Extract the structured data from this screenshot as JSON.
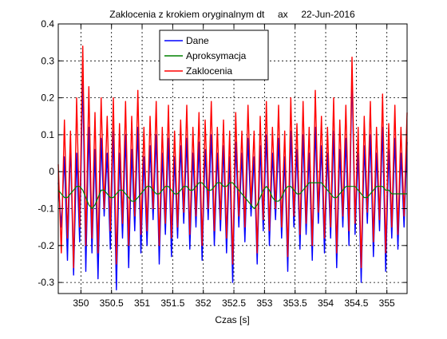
{
  "chart_data": {
    "type": "line",
    "title": "Zaklocenia z krokiem oryginalnym dt     ax     22-Jun-2016",
    "xlabel": "Czas [s]",
    "ylabel": "",
    "xlim": [
      349.63,
      355.33
    ],
    "ylim": [
      -0.33,
      0.4
    ],
    "xticks": [
      350,
      350.5,
      351,
      351.5,
      352,
      352.5,
      353,
      353.5,
      354,
      354.5,
      355
    ],
    "xtick_labels": [
      "350",
      "350.5",
      "351",
      "351.5",
      "352",
      "352.5",
      "353",
      "353.5",
      "354",
      "354.5",
      "355"
    ],
    "yticks": [
      -0.3,
      -0.2,
      -0.1,
      0,
      0.1,
      0.2,
      0.3,
      0.4
    ],
    "ytick_labels": [
      "-0.3",
      "-0.2",
      "-0.1",
      "0",
      "0.1",
      "0.2",
      "0.3",
      "0.4"
    ],
    "grid": true,
    "legend_position": "top-center",
    "series": [
      {
        "name": "Dane",
        "color": "#0000ff",
        "x": [
          349.63,
          349.68,
          349.73,
          349.78,
          349.83,
          349.88,
          349.93,
          349.98,
          350.03,
          350.08,
          350.13,
          350.18,
          350.23,
          350.28,
          350.33,
          350.38,
          350.43,
          350.48,
          350.53,
          350.58,
          350.63,
          350.68,
          350.73,
          350.78,
          350.83,
          350.88,
          350.93,
          350.98,
          351.03,
          351.08,
          351.13,
          351.18,
          351.23,
          351.28,
          351.33,
          351.38,
          351.43,
          351.48,
          351.53,
          351.58,
          351.63,
          351.68,
          351.73,
          351.78,
          351.83,
          351.88,
          351.93,
          351.98,
          352.03,
          352.08,
          352.13,
          352.18,
          352.23,
          352.28,
          352.33,
          352.38,
          352.43,
          352.48,
          352.53,
          352.58,
          352.63,
          352.68,
          352.73,
          352.78,
          352.83,
          352.88,
          352.93,
          352.98,
          353.03,
          353.08,
          353.13,
          353.18,
          353.23,
          353.28,
          353.33,
          353.38,
          353.43,
          353.48,
          353.53,
          353.58,
          353.63,
          353.68,
          353.73,
          353.78,
          353.83,
          353.88,
          353.93,
          353.98,
          354.03,
          354.08,
          354.13,
          354.18,
          354.23,
          354.28,
          354.33,
          354.38,
          354.43,
          354.48,
          354.53,
          354.58,
          354.63,
          354.68,
          354.73,
          354.78,
          354.83,
          354.88,
          354.93,
          354.98,
          355.03,
          355.08,
          355.13,
          355.18,
          355.23,
          355.28,
          355.33
        ],
        "y": [
          -0.03,
          -0.15,
          0.04,
          -0.24,
          0.08,
          -0.28,
          0.05,
          -0.19,
          0.26,
          -0.27,
          0.12,
          -0.22,
          0.06,
          -0.29,
          0.09,
          -0.12,
          0.05,
          -0.21,
          0.11,
          -0.32,
          0.05,
          -0.18,
          0.1,
          -0.26,
          0.06,
          -0.16,
          0.12,
          -0.22,
          0.04,
          -0.2,
          0.07,
          -0.13,
          0.1,
          -0.25,
          0.05,
          -0.17,
          0.09,
          -0.23,
          0.04,
          -0.18,
          0.07,
          -0.14,
          0.09,
          -0.21,
          0.05,
          -0.15,
          0.08,
          -0.24,
          0.06,
          -0.13,
          0.1,
          -0.2,
          0.05,
          -0.16,
          0.07,
          -0.22,
          0.04,
          -0.3,
          0.08,
          -0.15,
          0.05,
          -0.19,
          0.09,
          -0.12,
          0.04,
          -0.25,
          0.07,
          -0.16,
          0.1,
          -0.2,
          0.05,
          -0.13,
          0.09,
          -0.18,
          0.04,
          -0.27,
          0.11,
          -0.15,
          0.06,
          -0.21,
          0.1,
          -0.17,
          0.05,
          -0.24,
          0.12,
          -0.14,
          0.07,
          -0.22,
          0.05,
          -0.18,
          0.11,
          -0.26,
          0.06,
          -0.15,
          0.09,
          -0.2,
          0.27,
          -0.17,
          0.05,
          -0.3,
          0.07,
          -0.14,
          0.1,
          -0.23,
          0.05,
          -0.16,
          0.12,
          -0.27,
          0.06,
          -0.18,
          0.09,
          -0.21,
          0.05,
          -0.15,
          0.08
        ]
      },
      {
        "name": "Aproksymacja",
        "color": "#008000",
        "x": [
          349.63,
          349.68,
          349.73,
          349.78,
          349.83,
          349.88,
          349.93,
          349.98,
          350.03,
          350.08,
          350.13,
          350.18,
          350.23,
          350.28,
          350.33,
          350.38,
          350.43,
          350.48,
          350.53,
          350.58,
          350.63,
          350.68,
          350.73,
          350.78,
          350.83,
          350.88,
          350.93,
          350.98,
          351.03,
          351.08,
          351.13,
          351.18,
          351.23,
          351.28,
          351.33,
          351.38,
          351.43,
          351.48,
          351.53,
          351.58,
          351.63,
          351.68,
          351.73,
          351.78,
          351.83,
          351.88,
          351.93,
          351.98,
          352.03,
          352.08,
          352.13,
          352.18,
          352.23,
          352.28,
          352.33,
          352.38,
          352.43,
          352.48,
          352.53,
          352.58,
          352.63,
          352.68,
          352.73,
          352.78,
          352.83,
          352.88,
          352.93,
          352.98,
          353.03,
          353.08,
          353.13,
          353.18,
          353.23,
          353.28,
          353.33,
          353.38,
          353.43,
          353.48,
          353.53,
          353.58,
          353.63,
          353.68,
          353.73,
          353.78,
          353.83,
          353.88,
          353.93,
          353.98,
          354.03,
          354.08,
          354.13,
          354.18,
          354.23,
          354.28,
          354.33,
          354.38,
          354.43,
          354.48,
          354.53,
          354.58,
          354.63,
          354.68,
          354.73,
          354.78,
          354.83,
          354.88,
          354.93,
          354.98,
          355.03,
          355.08,
          355.13,
          355.18,
          355.23,
          355.28,
          355.33
        ],
        "y": [
          -0.05,
          -0.06,
          -0.07,
          -0.07,
          -0.06,
          -0.05,
          -0.04,
          -0.04,
          -0.05,
          -0.07,
          -0.09,
          -0.1,
          -0.09,
          -0.07,
          -0.05,
          -0.05,
          -0.06,
          -0.07,
          -0.07,
          -0.06,
          -0.05,
          -0.05,
          -0.06,
          -0.07,
          -0.08,
          -0.08,
          -0.07,
          -0.06,
          -0.05,
          -0.04,
          -0.04,
          -0.05,
          -0.06,
          -0.06,
          -0.05,
          -0.04,
          -0.04,
          -0.05,
          -0.06,
          -0.06,
          -0.05,
          -0.04,
          -0.04,
          -0.05,
          -0.05,
          -0.04,
          -0.03,
          -0.03,
          -0.04,
          -0.05,
          -0.05,
          -0.04,
          -0.03,
          -0.03,
          -0.04,
          -0.04,
          -0.03,
          -0.03,
          -0.04,
          -0.05,
          -0.06,
          -0.07,
          -0.08,
          -0.09,
          -0.1,
          -0.09,
          -0.07,
          -0.05,
          -0.04,
          -0.05,
          -0.07,
          -0.08,
          -0.08,
          -0.07,
          -0.05,
          -0.04,
          -0.04,
          -0.05,
          -0.06,
          -0.06,
          -0.05,
          -0.04,
          -0.03,
          -0.03,
          -0.03,
          -0.03,
          -0.03,
          -0.04,
          -0.05,
          -0.06,
          -0.07,
          -0.07,
          -0.06,
          -0.05,
          -0.04,
          -0.04,
          -0.04,
          -0.04,
          -0.05,
          -0.06,
          -0.07,
          -0.07,
          -0.06,
          -0.05,
          -0.04,
          -0.04,
          -0.04,
          -0.05,
          -0.05,
          -0.06,
          -0.06,
          -0.06,
          -0.06,
          -0.06,
          -0.06
        ]
      },
      {
        "name": "Zaklocenia",
        "color": "#ff0000",
        "x": [
          349.63,
          349.68,
          349.73,
          349.78,
          349.83,
          349.88,
          349.93,
          349.98,
          350.03,
          350.08,
          350.13,
          350.18,
          350.23,
          350.28,
          350.33,
          350.38,
          350.43,
          350.48,
          350.53,
          350.58,
          350.63,
          350.68,
          350.73,
          350.78,
          350.83,
          350.88,
          350.93,
          350.98,
          351.03,
          351.08,
          351.13,
          351.18,
          351.23,
          351.28,
          351.33,
          351.38,
          351.43,
          351.48,
          351.53,
          351.58,
          351.63,
          351.68,
          351.73,
          351.78,
          351.83,
          351.88,
          351.93,
          351.98,
          352.03,
          352.08,
          352.13,
          352.18,
          352.23,
          352.28,
          352.33,
          352.38,
          352.43,
          352.48,
          352.53,
          352.58,
          352.63,
          352.68,
          352.73,
          352.78,
          352.83,
          352.88,
          352.93,
          352.98,
          353.03,
          353.08,
          353.13,
          353.18,
          353.23,
          353.28,
          353.33,
          353.38,
          353.43,
          353.48,
          353.53,
          353.58,
          353.63,
          353.68,
          353.73,
          353.78,
          353.83,
          353.88,
          353.93,
          353.98,
          354.03,
          354.08,
          354.13,
          354.18,
          354.23,
          354.28,
          354.33,
          354.38,
          354.43,
          354.48,
          354.53,
          354.58,
          354.63,
          354.68,
          354.73,
          354.78,
          354.83,
          354.88,
          354.93,
          354.98,
          355.03,
          355.08,
          355.13,
          355.18,
          355.23,
          355.28,
          355.33
        ],
        "y": [
          0.02,
          -0.22,
          0.14,
          -0.18,
          0.11,
          -0.26,
          0.2,
          -0.15,
          0.34,
          -0.2,
          0.23,
          -0.18,
          0.16,
          -0.22,
          0.2,
          -0.1,
          0.15,
          -0.16,
          0.2,
          -0.25,
          0.13,
          -0.14,
          0.19,
          -0.2,
          0.15,
          -0.12,
          0.22,
          -0.17,
          0.12,
          -0.16,
          0.15,
          -0.1,
          0.19,
          -0.2,
          0.12,
          -0.14,
          0.18,
          -0.18,
          0.11,
          -0.15,
          0.14,
          -0.11,
          0.18,
          -0.17,
          0.12,
          -0.12,
          0.16,
          -0.2,
          0.14,
          -0.1,
          0.19,
          -0.16,
          0.12,
          -0.13,
          0.14,
          -0.18,
          0.11,
          -0.25,
          0.16,
          -0.12,
          0.11,
          -0.15,
          0.18,
          -0.09,
          0.11,
          -0.22,
          0.15,
          -0.13,
          0.19,
          -0.16,
          0.12,
          -0.1,
          0.18,
          -0.15,
          0.11,
          -0.23,
          0.2,
          -0.12,
          0.13,
          -0.17,
          0.19,
          -0.14,
          0.12,
          -0.2,
          0.22,
          -0.11,
          0.15,
          -0.18,
          0.12,
          -0.15,
          0.2,
          -0.22,
          0.14,
          -0.12,
          0.18,
          -0.16,
          0.31,
          -0.14,
          0.12,
          -0.26,
          0.15,
          -0.11,
          0.19,
          -0.19,
          0.12,
          -0.13,
          0.21,
          -0.22,
          0.13,
          -0.15,
          0.18,
          -0.17,
          0.12,
          -0.12,
          0.16
        ]
      }
    ]
  }
}
